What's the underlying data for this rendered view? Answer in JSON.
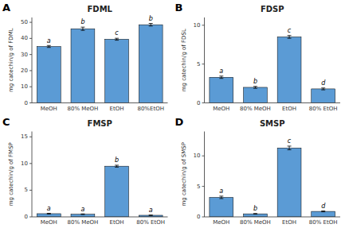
{
  "chart_data": [
    {
      "type": "bar",
      "label": "A",
      "title": "FDML",
      "ylabel": "mg catechin/g of FDML",
      "categories": [
        "MeOH",
        "80% MeOH",
        "EtOH",
        "80%EtOH"
      ],
      "values": [
        35,
        46,
        39.5,
        48.5
      ],
      "errors": [
        0.6,
        1.0,
        0.6,
        0.8
      ],
      "annotations": [
        "a",
        "b",
        "c",
        "b"
      ],
      "color": "#5B9BD5",
      "ylim": [
        0,
        53
      ],
      "yticks": [
        0,
        10,
        20,
        30,
        40,
        50
      ],
      "grid": false
    },
    {
      "type": "bar",
      "label": "B",
      "title": "FDSP",
      "ylabel": "mg catechin/g of FDSL",
      "categories": [
        "MeOH",
        "80% MeOH",
        "EtOH",
        "80% EtOH"
      ],
      "values": [
        3.3,
        2.0,
        8.5,
        1.8
      ],
      "errors": [
        0.15,
        0.12,
        0.18,
        0.12
      ],
      "annotations": [
        "a",
        "b",
        "c",
        "d"
      ],
      "color": "#5B9BD5",
      "ylim": [
        0,
        11
      ],
      "yticks": [
        0,
        5,
        10
      ],
      "grid": false
    },
    {
      "type": "bar",
      "label": "C",
      "title": "FMSP",
      "ylabel": "mg catechin/g of FMSP",
      "categories": [
        "MeOH",
        "80% MeOH",
        "EtOH",
        "80% EtOH"
      ],
      "values": [
        0.6,
        0.5,
        9.5,
        0.3
      ],
      "errors": [
        0.07,
        0.06,
        0.18,
        0.04
      ],
      "annotations": [
        "a",
        "a",
        "b",
        "a"
      ],
      "color": "#5B9BD5",
      "ylim": [
        0,
        16
      ],
      "yticks": [
        0,
        5,
        10,
        15
      ],
      "grid": false
    },
    {
      "type": "bar",
      "label": "D",
      "title": "SMSP",
      "ylabel": "mg catechin/g of SMSP",
      "categories": [
        "MeOH",
        "80% MeOH",
        "EtOH",
        "80% EtOH"
      ],
      "values": [
        3.2,
        0.5,
        11.3,
        0.9
      ],
      "errors": [
        0.2,
        0.05,
        0.3,
        0.07
      ],
      "annotations": [
        "a",
        "b",
        "c",
        "d"
      ],
      "color": "#5B9BD5",
      "ylim": [
        0,
        14
      ],
      "yticks": [
        0,
        5,
        10
      ],
      "grid": false
    }
  ]
}
